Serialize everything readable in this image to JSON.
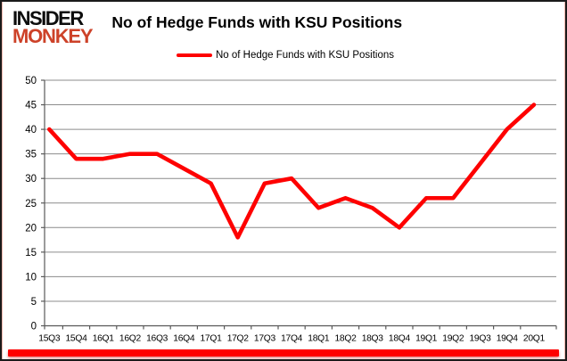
{
  "header": {
    "logo_line1": "INSIDER",
    "logo_line2": "MONKEY",
    "title": "No of Hedge Funds with KSU Positions"
  },
  "legend": {
    "label": "No of Hedge Funds with KSU Positions"
  },
  "colors": {
    "series_line": "#fe0000",
    "gridline": "#8c8c8c",
    "axis_line": "#595959",
    "tick_label": "#000000",
    "logo_black": "#0d0d0d",
    "logo_accent": "#cd4229",
    "bottom_bar": "#fe0000"
  },
  "chart_data": {
    "type": "line",
    "title": "No of Hedge Funds with KSU Positions",
    "categories": [
      "15Q3",
      "15Q4",
      "16Q1",
      "16Q2",
      "16Q3",
      "16Q4",
      "17Q1",
      "17Q2",
      "17Q3",
      "17Q4",
      "18Q1",
      "18Q2",
      "18Q3",
      "18Q4",
      "19Q1",
      "19Q2",
      "19Q3",
      "19Q4",
      "20Q1"
    ],
    "series": [
      {
        "name": "No of Hedge Funds with KSU Positions",
        "values": [
          40,
          34,
          34,
          35,
          35,
          32,
          29,
          18,
          29,
          30,
          24,
          26,
          24,
          20,
          26,
          26,
          33,
          40,
          45
        ]
      }
    ],
    "xlabel": "",
    "ylabel": "",
    "ylim": [
      0,
      50
    ],
    "ytick_step": 5,
    "grid": true,
    "legend_position": "top-center"
  }
}
